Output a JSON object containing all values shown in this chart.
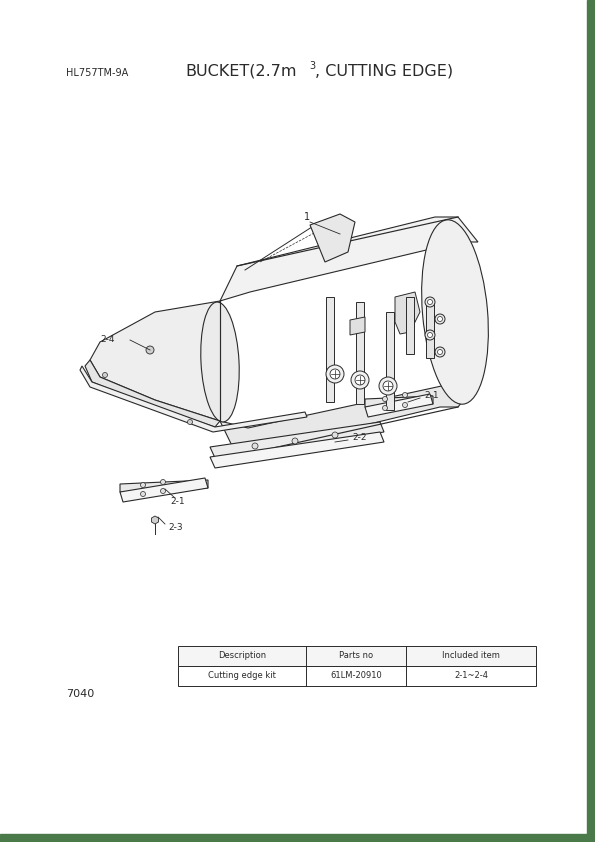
{
  "page_width": 5.95,
  "page_height": 8.42,
  "bg_color": "#ffffff",
  "border_color": "#4a7a4a",
  "top_left_text": "HL757TM-9A",
  "title": "BUCKET(2.7m",
  "title_superscript": "3",
  "title_suffix": ", CUTTING EDGE)",
  "page_number": "7040",
  "table_headers": [
    "Description",
    "Parts no",
    "Included item"
  ],
  "table_row": [
    "Cutting edge kit",
    "61LM-20910",
    "2-1~2-4"
  ],
  "label_1": "1",
  "label_2_1a": "2-1",
  "label_2_1b": "2-1",
  "label_2_2": "2-2",
  "label_2_3": "2-3",
  "label_2_4": "2-4",
  "lc": "#2a2a2a"
}
